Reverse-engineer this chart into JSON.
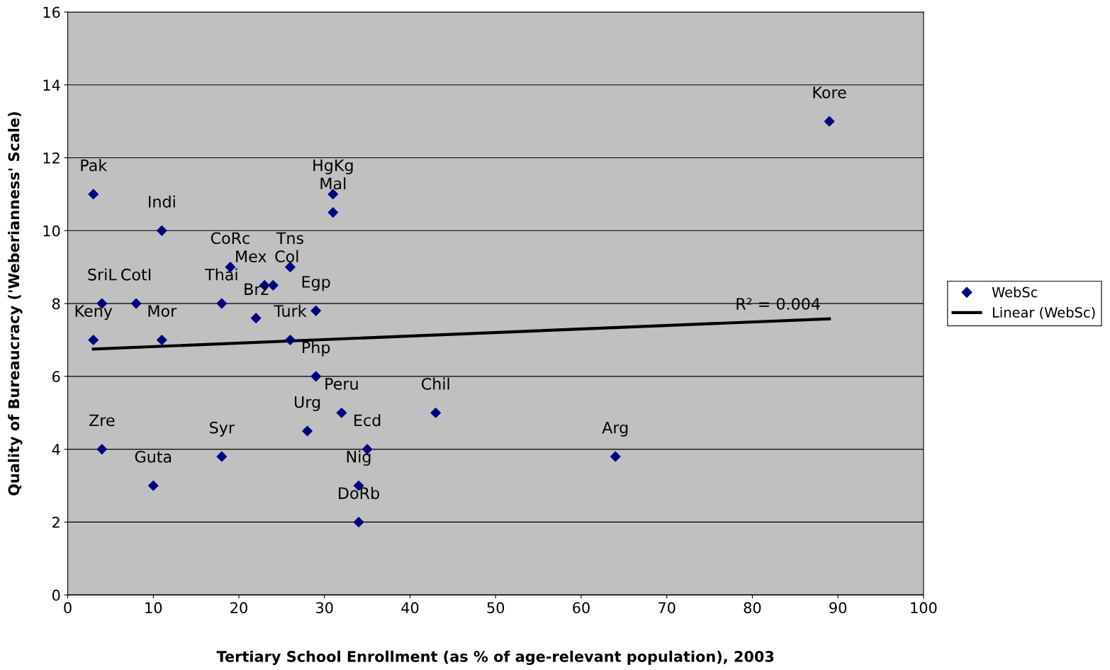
{
  "chart_data": {
    "type": "scatter",
    "xlabel": "Tertiary School Enrollment (as % of age-relevant population), 2003",
    "ylabel": "Quality of Bureaucracy ('Weberianness' Scale)",
    "xlim": [
      0,
      100
    ],
    "xticks": [
      0,
      10,
      20,
      30,
      40,
      50,
      60,
      70,
      80,
      90,
      100
    ],
    "ylim": [
      0,
      16
    ],
    "yticks": [
      0,
      2,
      4,
      6,
      8,
      10,
      12,
      14,
      16
    ],
    "grid": "y",
    "legend": "right",
    "series": [
      {
        "name": "WebSc",
        "marker": "diamond",
        "color": "#000080",
        "x": [
          3,
          11,
          19,
          26,
          23,
          24,
          22,
          18,
          4,
          8,
          3,
          11,
          29,
          26,
          29,
          31,
          31,
          32,
          28,
          43,
          35,
          34,
          34,
          4,
          10,
          18,
          64,
          89
        ],
        "values": [
          11,
          10,
          9,
          9,
          8.5,
          8.5,
          7.6,
          8,
          8,
          8,
          7,
          7,
          7.8,
          7,
          6,
          11,
          10.5,
          5,
          4.5,
          5,
          4,
          3,
          2,
          4,
          3,
          3.8,
          3.8,
          13
        ]
      },
      {
        "name": "Linear (WebSc)",
        "type": "line",
        "marker": "none",
        "color": "#000000",
        "x": [
          3,
          89
        ],
        "values": [
          6.75,
          7.58
        ]
      }
    ],
    "annotations": [
      {
        "text": "Pak",
        "x": 3,
        "y": 11
      },
      {
        "text": "Indi",
        "x": 11,
        "y": 10
      },
      {
        "text": "CoRc",
        "x": 19,
        "y": 9
      },
      {
        "text": "Tns",
        "x": 26,
        "y": 9
      },
      {
        "text": "Mex",
        "x": 23,
        "y": 8.5
      },
      {
        "text": "Col",
        "x": 24,
        "y": 8.5
      },
      {
        "text": "Brz",
        "x": 22,
        "y": 7.6
      },
      {
        "text": "Thai",
        "x": 18,
        "y": 8
      },
      {
        "text": "SriL",
        "x": 4,
        "y": 8
      },
      {
        "text": "CotI",
        "x": 8,
        "y": 8
      },
      {
        "text": "Keny",
        "x": 3,
        "y": 7
      },
      {
        "text": "Mor",
        "x": 11,
        "y": 7
      },
      {
        "text": "Egp",
        "x": 29,
        "y": 7.8
      },
      {
        "text": "Turk",
        "x": 26,
        "y": 7
      },
      {
        "text": "Php",
        "x": 29,
        "y": 6
      },
      {
        "text": "HgKg",
        "x": 31,
        "y": 11
      },
      {
        "text": "Mal",
        "x": 31,
        "y": 10.5
      },
      {
        "text": "Peru",
        "x": 32,
        "y": 5
      },
      {
        "text": "Urg",
        "x": 28,
        "y": 4.5
      },
      {
        "text": "Chil",
        "x": 43,
        "y": 5
      },
      {
        "text": "Ecd",
        "x": 35,
        "y": 4
      },
      {
        "text": "Nig",
        "x": 34,
        "y": 3
      },
      {
        "text": "DoRb",
        "x": 34,
        "y": 2
      },
      {
        "text": "Zre",
        "x": 4,
        "y": 4
      },
      {
        "text": "Guta",
        "x": 10,
        "y": 3
      },
      {
        "text": "Syr",
        "x": 18,
        "y": 3.8
      },
      {
        "text": "Arg",
        "x": 64,
        "y": 3.8
      },
      {
        "text": "Kore",
        "x": 89,
        "y": 13
      },
      {
        "text": "R² = 0.004",
        "x": 83,
        "y": 7.52
      }
    ]
  }
}
